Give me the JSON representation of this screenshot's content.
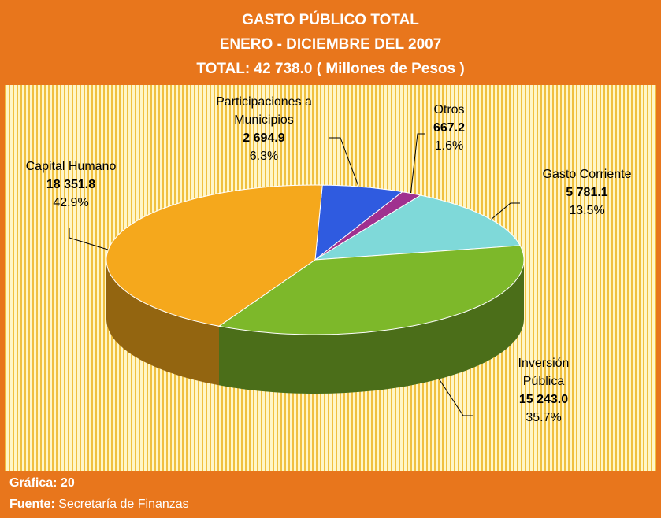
{
  "chart_data": {
    "type": "pie3d",
    "title": [
      "GASTO PÚBLICO TOTAL",
      "ENERO - DICIEMBRE DEL 2007",
      "TOTAL:  42 738.0  ( Millones de Pesos )"
    ],
    "categories": [
      "Participaciones a Municipios",
      "Otros",
      "Gasto Corriente",
      "Inversión Pública",
      "Capital Humano"
    ],
    "values": [
      2694.9,
      667.2,
      5781.1,
      15243.0,
      18351.8
    ],
    "value_labels": [
      "2 694.9",
      "667.2",
      "5 781.1",
      "15 243.0",
      "18 351.8"
    ],
    "percents": [
      6.3,
      1.6,
      13.5,
      35.7,
      42.9
    ],
    "percent_labels": [
      "6.3%",
      "1.6%",
      "13.5%",
      "35.7%",
      "42.9%"
    ],
    "colors": [
      "#2f5be0",
      "#a0308f",
      "#7fd9d9",
      "#7db82a",
      "#f5a81c"
    ]
  },
  "footer": {
    "chart_label": "Gráfica:",
    "chart_number": "20",
    "source_label": "Fuente:",
    "source": "Secretaría de Finanzas"
  }
}
